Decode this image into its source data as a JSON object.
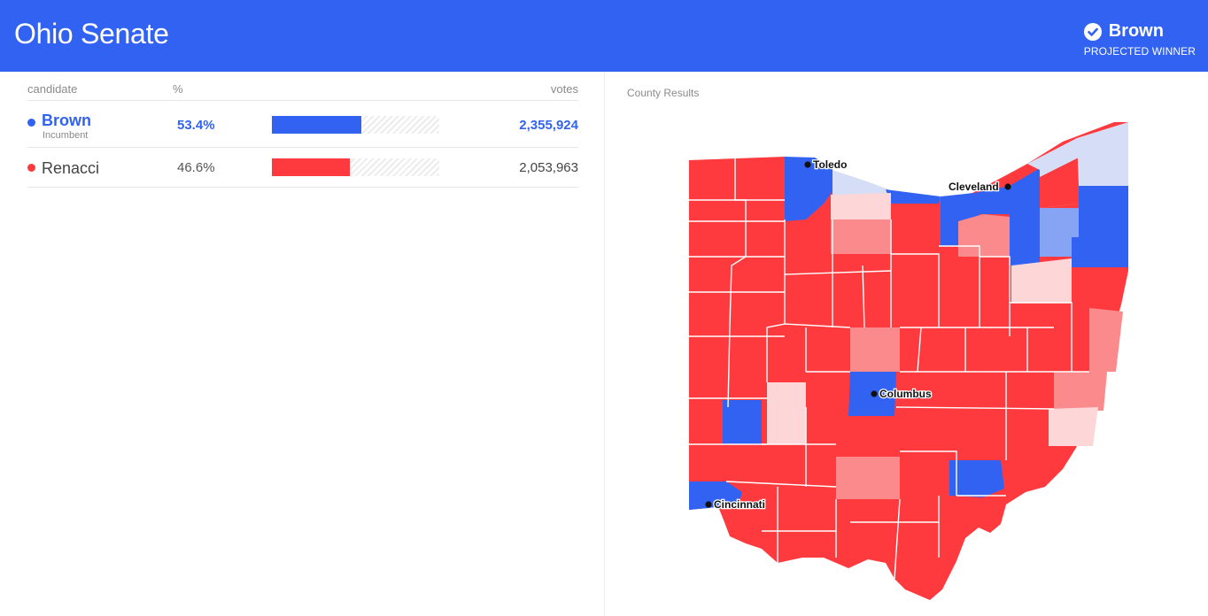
{
  "header": {
    "title": "Ohio Senate",
    "winner_name": "Brown",
    "winner_status": "PROJECTED WINNER",
    "check_icon": "check-circle-icon"
  },
  "table": {
    "col_candidate": "candidate",
    "col_pct": "%",
    "col_votes": "votes",
    "candidates": [
      {
        "name": "Brown",
        "subtitle": "Incumbent",
        "pct": "53.4%",
        "pct_value": 53.4,
        "votes": "2,355,924",
        "color": "#3262f2",
        "winner": true
      },
      {
        "name": "Renacci",
        "subtitle": "",
        "pct": "46.6%",
        "pct_value": 46.6,
        "votes": "2,053,963",
        "color": "#ff3a3f",
        "winner": false
      }
    ]
  },
  "map": {
    "label": "County Results",
    "colors": {
      "dem_strong": "#3262f2",
      "dem_medium": "#87a3f3",
      "dem_light": "#d6def7",
      "rep_strong": "#ff3a3f",
      "rep_medium": "#fb8a8c",
      "rep_light": "#fdd7d8",
      "lake": "#ffffff",
      "border": "#ffffff"
    },
    "cities": [
      {
        "name": "Toledo"
      },
      {
        "name": "Cleveland"
      },
      {
        "name": "Columbus"
      },
      {
        "name": "Cincinnati"
      }
    ]
  }
}
